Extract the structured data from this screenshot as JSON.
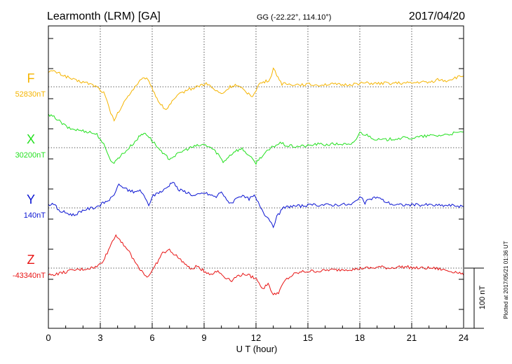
{
  "header": {
    "station": "Learmonth (LRM)  [GA]",
    "coords": "GG (-22.22°, 114.10°)",
    "date": "2017/04/20"
  },
  "footer": {
    "plotted": "Plotted at 2017/05/21 01:36 UT"
  },
  "chart_data": {
    "type": "line",
    "title": "Learmonth (LRM)  [GA]",
    "xlabel": "U T (hour)",
    "xlim": [
      0,
      24
    ],
    "xticks": [
      0,
      3,
      6,
      9,
      12,
      15,
      18,
      21,
      24
    ],
    "xtick_labels": [
      "0",
      "3",
      "6",
      "9",
      "12",
      "15",
      "18",
      "21",
      "24"
    ],
    "grid": true,
    "scale_bar": {
      "label": "100 nT",
      "value": 100
    },
    "series": [
      {
        "name": "F",
        "baseline_label": "52830nT",
        "color": "#f5b400",
        "x": [
          0,
          0.4,
          0.8,
          1.2,
          1.6,
          2.0,
          2.4,
          2.8,
          3.0,
          3.2,
          3.4,
          3.6,
          3.8,
          4.0,
          4.3,
          4.6,
          5.0,
          5.3,
          5.6,
          5.9,
          6.2,
          6.5,
          6.8,
          7.0,
          7.3,
          7.6,
          8.0,
          8.4,
          8.8,
          9.2,
          9.6,
          10.0,
          10.2,
          10.5,
          10.8,
          11.1,
          11.5,
          11.8,
          12.0,
          12.2,
          12.5,
          12.8,
          13.0,
          13.2,
          13.5,
          14.0,
          14.5,
          15.0,
          15.5,
          16.0,
          16.5,
          17.0,
          17.5,
          18.0,
          18.5,
          19.0,
          19.5,
          20.0,
          20.5,
          21.0,
          21.5,
          22.0,
          22.5,
          23.0,
          23.5,
          24.0
        ],
        "y": [
          26,
          25,
          20,
          15,
          10,
          8,
          5,
          0,
          -5,
          -10,
          -25,
          -45,
          -55,
          -45,
          -30,
          -15,
          0,
          10,
          15,
          5,
          -15,
          -30,
          -38,
          -30,
          -20,
          -12,
          -5,
          -2,
          3,
          5,
          -5,
          -12,
          -8,
          0,
          3,
          -2,
          -10,
          -15,
          -5,
          5,
          8,
          12,
          30,
          20,
          5,
          4,
          4,
          4,
          3,
          4,
          4,
          3,
          4,
          6,
          6,
          5,
          6,
          6,
          6,
          6,
          8,
          7,
          12,
          10,
          15,
          18
        ]
      },
      {
        "name": "X",
        "baseline_label": "30200nT",
        "color": "#22e01e",
        "x": [
          0,
          0.4,
          0.8,
          1.2,
          1.6,
          2.0,
          2.4,
          2.8,
          3.0,
          3.2,
          3.4,
          3.6,
          3.8,
          4.1,
          4.5,
          5.0,
          5.3,
          5.6,
          5.9,
          6.2,
          6.6,
          7.0,
          7.4,
          7.8,
          8.2,
          8.6,
          9.0,
          9.4,
          9.8,
          10.1,
          10.4,
          10.8,
          11.2,
          11.5,
          11.8,
          12.0,
          12.3,
          12.7,
          13.0,
          13.4,
          13.8,
          14.3,
          15.0,
          15.5,
          16.0,
          16.5,
          17.0,
          17.5,
          17.8,
          18.0,
          18.5,
          19.0,
          19.5,
          20.0,
          20.5,
          21.0,
          21.5,
          22.0,
          22.5,
          23.0,
          23.5,
          24.0
        ],
        "y": [
          54,
          50,
          40,
          32,
          30,
          28,
          26,
          22,
          15,
          5,
          -10,
          -20,
          -25,
          -15,
          -5,
          10,
          20,
          25,
          15,
          5,
          -10,
          -18,
          -12,
          -5,
          0,
          3,
          5,
          0,
          -10,
          -24,
          -15,
          -5,
          -2,
          -10,
          -20,
          -25,
          -15,
          -5,
          2,
          8,
          3,
          2,
          3,
          6,
          5,
          6,
          6,
          4,
          15,
          25,
          20,
          13,
          13,
          15,
          16,
          16,
          18,
          20,
          20,
          22,
          24,
          26
        ]
      },
      {
        "name": "Y",
        "baseline_label": "140nT",
        "color": "#0a14d2",
        "x": [
          0,
          0.3,
          0.6,
          0.9,
          1.2,
          1.5,
          1.9,
          2.2,
          2.6,
          3.0,
          3.3,
          3.6,
          3.8,
          4.0,
          4.3,
          4.6,
          5.0,
          5.3,
          5.6,
          5.8,
          6.0,
          6.3,
          6.6,
          6.9,
          7.2,
          7.5,
          7.8,
          8.1,
          8.4,
          8.7,
          9.0,
          9.3,
          9.7,
          10.0,
          10.3,
          10.6,
          11.0,
          11.3,
          11.6,
          11.9,
          12.2,
          12.5,
          12.8,
          13.0,
          13.2,
          13.6,
          14.0,
          14.5,
          15.0,
          15.5,
          16.0,
          16.5,
          17.0,
          17.5,
          17.8,
          18.0,
          18.3,
          18.6,
          19.0,
          19.5,
          20.0,
          20.5,
          21.0,
          21.5,
          22.0,
          22.5,
          23.0,
          23.5,
          24.0
        ],
        "y": [
          5,
          8,
          -5,
          -7,
          -10,
          -12,
          -5,
          -2,
          0,
          5,
          10,
          15,
          20,
          38,
          35,
          30,
          25,
          30,
          15,
          5,
          18,
          25,
          28,
          35,
          45,
          30,
          28,
          25,
          20,
          22,
          25,
          22,
          18,
          28,
          12,
          8,
          20,
          18,
          15,
          20,
          5,
          -10,
          -20,
          -30,
          -15,
          0,
          3,
          3,
          4,
          5,
          5,
          5,
          6,
          5,
          12,
          20,
          8,
          15,
          18,
          10,
          5,
          5,
          5,
          5,
          5,
          4,
          4,
          4,
          2
        ]
      },
      {
        "name": "Z",
        "baseline_label": "-43340nT",
        "color": "#e81414",
        "x": [
          0,
          0.4,
          0.8,
          1.2,
          1.6,
          2.0,
          2.4,
          2.8,
          3.1,
          3.4,
          3.7,
          3.9,
          4.2,
          4.6,
          5.0,
          5.4,
          5.7,
          6.0,
          6.3,
          6.6,
          7.0,
          7.4,
          7.8,
          8.2,
          8.6,
          9.0,
          9.4,
          9.8,
          10.2,
          10.6,
          11.0,
          11.4,
          11.8,
          12.1,
          12.4,
          12.7,
          13.0,
          13.3,
          13.7,
          14.2,
          14.7,
          15.2,
          15.7,
          16.2,
          16.7,
          17.2,
          17.7,
          18.2,
          18.7,
          19.2,
          19.7,
          20.2,
          20.7,
          21.2,
          21.7,
          22.2,
          22.7,
          23.2,
          23.7,
          24.0
        ],
        "y": [
          -12,
          -10,
          -8,
          -5,
          -3,
          -2,
          0,
          2,
          10,
          25,
          45,
          55,
          45,
          30,
          10,
          -5,
          -15,
          -5,
          10,
          25,
          30,
          20,
          10,
          -2,
          3,
          -5,
          -10,
          -5,
          -15,
          -20,
          -12,
          -10,
          -15,
          -20,
          -35,
          -25,
          -45,
          -40,
          -20,
          -10,
          -6,
          -5,
          -5,
          -3,
          -3,
          -2,
          -2,
          0,
          0,
          2,
          0,
          2,
          2,
          0,
          0,
          0,
          -2,
          -5,
          -7,
          -12
        ]
      }
    ]
  }
}
